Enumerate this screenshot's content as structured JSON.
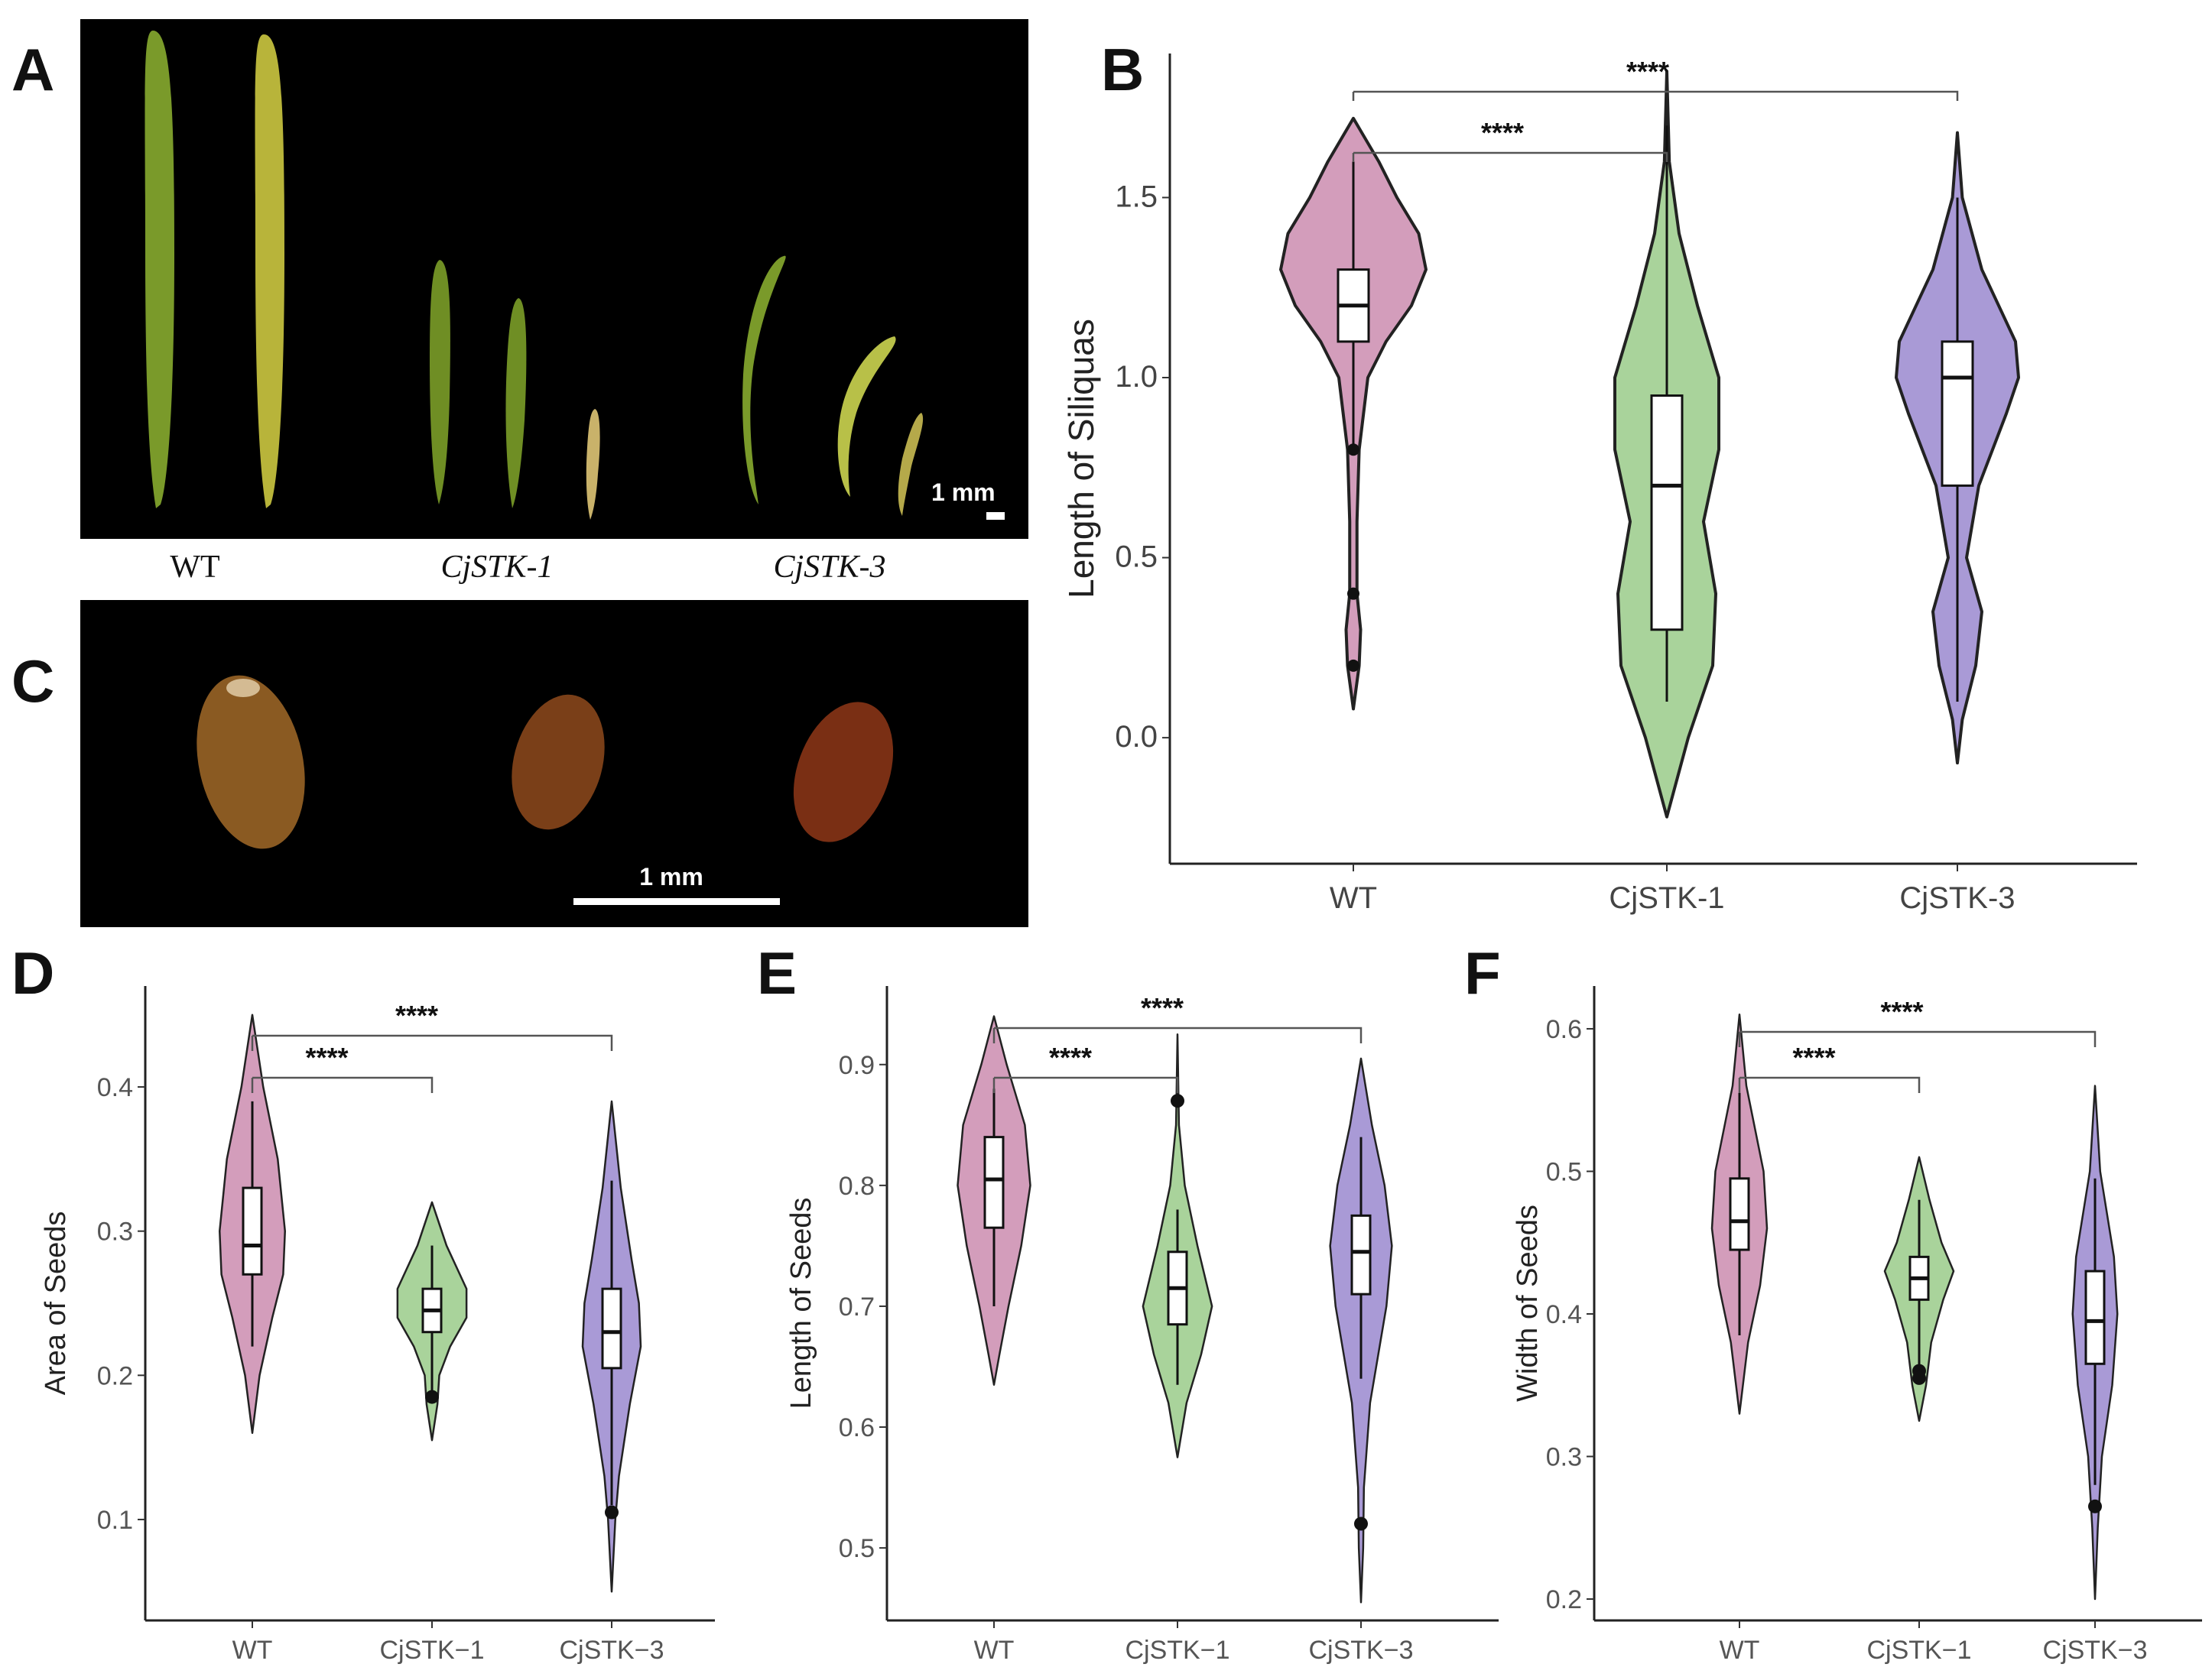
{
  "panels": {
    "A": {
      "label": "A",
      "scale_bar": "1 mm",
      "genotype_labels": [
        "WT",
        "CjSTK-1",
        "CjSTK-3"
      ]
    },
    "C": {
      "label": "C",
      "scale_bar": "1 mm"
    }
  },
  "colors": {
    "WT": "#d39dbb",
    "CjSTK-1": "#a9d39b",
    "CjSTK-3": "#a99ad6"
  },
  "chart_data": [
    {
      "id": "B",
      "panel_label": "B",
      "type": "violin",
      "categories": [
        "WT",
        "CjSTK-1",
        "CjSTK-3"
      ],
      "ylabel": "Length of Siliquas",
      "yticks": [
        "0.0",
        "0.5",
        "1.0",
        "1.5"
      ],
      "ylim": [
        -0.35,
        1.9
      ],
      "boxes": [
        {
          "group": "WT",
          "q1": 1.1,
          "median": 1.2,
          "q3": 1.3,
          "whisker_low": 0.8,
          "whisker_high": 1.6,
          "outliers": [
            0.8,
            0.4,
            0.2
          ]
        },
        {
          "group": "CjSTK-1",
          "q1": 0.3,
          "median": 0.7,
          "q3": 0.95,
          "whisker_low": 0.1,
          "whisker_high": 1.7,
          "outliers": []
        },
        {
          "group": "CjSTK-3",
          "q1": 0.7,
          "median": 1.0,
          "q3": 1.1,
          "whisker_low": 0.1,
          "whisker_high": 1.5,
          "outliers": []
        }
      ],
      "significance": [
        {
          "from": "WT",
          "to": "CjSTK-1",
          "label": "****"
        },
        {
          "from": "WT",
          "to": "CjSTK-3",
          "label": "****"
        }
      ]
    },
    {
      "id": "D",
      "panel_label": "D",
      "type": "violin",
      "categories": [
        "WT",
        "CjSTK−1",
        "CjSTK−3"
      ],
      "ylabel": "Area of Seeds",
      "yticks": [
        "0.1",
        "0.2",
        "0.3",
        "0.4"
      ],
      "ylim": [
        0.03,
        0.47
      ],
      "boxes": [
        {
          "group": "WT",
          "q1": 0.27,
          "median": 0.29,
          "q3": 0.33,
          "whisker_low": 0.22,
          "whisker_high": 0.39,
          "outliers": []
        },
        {
          "group": "CjSTK−1",
          "q1": 0.23,
          "median": 0.245,
          "q3": 0.26,
          "whisker_low": 0.185,
          "whisker_high": 0.29,
          "outliers": [
            0.185
          ]
        },
        {
          "group": "CjSTK−3",
          "q1": 0.205,
          "median": 0.23,
          "q3": 0.26,
          "whisker_low": 0.11,
          "whisker_high": 0.335,
          "outliers": [
            0.105
          ]
        }
      ],
      "significance": [
        {
          "from": "WT",
          "to": "CjSTK−1",
          "label": "****"
        },
        {
          "from": "WT",
          "to": "CjSTK−3",
          "label": "****"
        }
      ]
    },
    {
      "id": "E",
      "panel_label": "E",
      "type": "violin",
      "categories": [
        "WT",
        "CjSTK−1",
        "CjSTK−3"
      ],
      "ylabel": "Length of Seeds",
      "yticks": [
        "0.5",
        "0.6",
        "0.7",
        "0.8",
        "0.9"
      ],
      "ylim": [
        0.44,
        0.965
      ],
      "boxes": [
        {
          "group": "WT",
          "q1": 0.765,
          "median": 0.805,
          "q3": 0.84,
          "whisker_low": 0.7,
          "whisker_high": 0.88,
          "outliers": []
        },
        {
          "group": "CjSTK−1",
          "q1": 0.685,
          "median": 0.715,
          "q3": 0.745,
          "whisker_low": 0.635,
          "whisker_high": 0.78,
          "outliers": [
            0.87
          ]
        },
        {
          "group": "CjSTK−3",
          "q1": 0.71,
          "median": 0.745,
          "q3": 0.775,
          "whisker_low": 0.64,
          "whisker_high": 0.84,
          "outliers": [
            0.52
          ]
        }
      ],
      "significance": [
        {
          "from": "WT",
          "to": "CjSTK−1",
          "label": "****"
        },
        {
          "from": "WT",
          "to": "CjSTK−3",
          "label": "****"
        }
      ]
    },
    {
      "id": "F",
      "panel_label": "F",
      "type": "violin",
      "categories": [
        "WT",
        "CjSTK−1",
        "CjSTK−3"
      ],
      "ylabel": "Width of Seeds",
      "yticks": [
        "0.2",
        "0.3",
        "0.4",
        "0.5",
        "0.6"
      ],
      "ylim": [
        0.185,
        0.63
      ],
      "boxes": [
        {
          "group": "WT",
          "q1": 0.445,
          "median": 0.465,
          "q3": 0.495,
          "whisker_low": 0.385,
          "whisker_high": 0.555,
          "outliers": []
        },
        {
          "group": "CjSTK−1",
          "q1": 0.41,
          "median": 0.425,
          "q3": 0.44,
          "whisker_low": 0.36,
          "whisker_high": 0.48,
          "outliers": [
            0.36,
            0.355
          ]
        },
        {
          "group": "CjSTK−3",
          "q1": 0.365,
          "median": 0.395,
          "q3": 0.43,
          "whisker_low": 0.28,
          "whisker_high": 0.495,
          "outliers": [
            0.265
          ]
        }
      ],
      "significance": [
        {
          "from": "WT",
          "to": "CjSTK−1",
          "label": "****"
        },
        {
          "from": "WT",
          "to": "CjSTK−3",
          "label": "****"
        }
      ]
    }
  ]
}
